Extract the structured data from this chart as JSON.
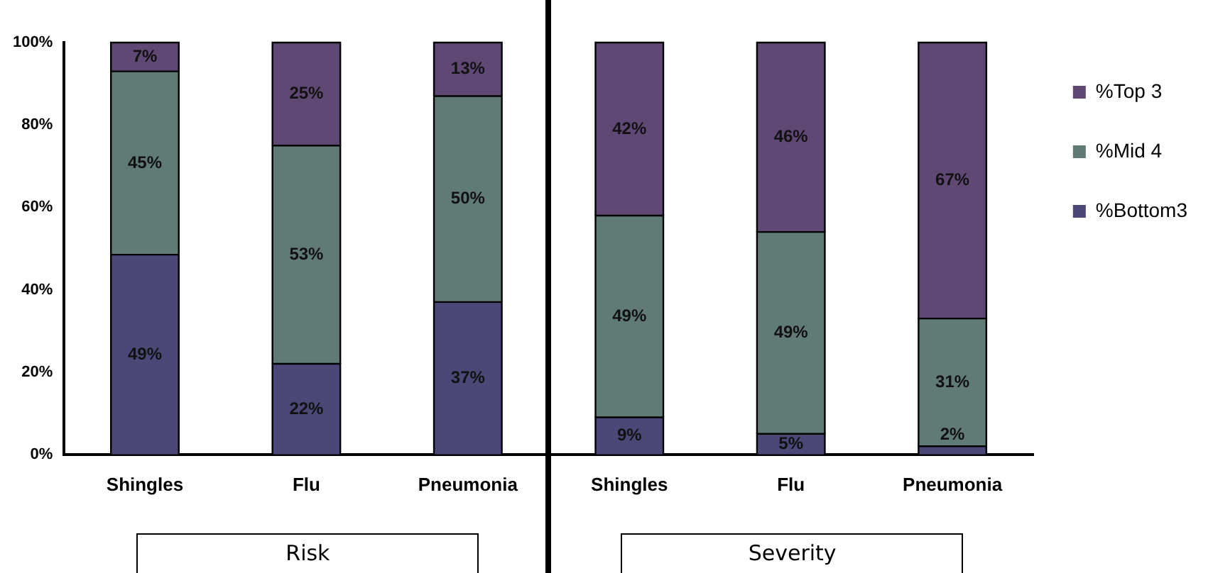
{
  "chart_data": {
    "type": "bar",
    "stacked": true,
    "categories": [
      "Shingles",
      "Flu",
      "Pneumonia",
      "Shingles",
      "Flu",
      "Pneumonia"
    ],
    "series": [
      {
        "name": "%Bottom3",
        "color": "#4b4878",
        "values": [
          48.5,
          22,
          37,
          9,
          5,
          2
        ],
        "value_labels": [
          "49%",
          "22%",
          "37%",
          "9%",
          "5%",
          "2%"
        ]
      },
      {
        "name": "%Mid 4",
        "color": "#607a76",
        "values": [
          44.5,
          53,
          50,
          49,
          49,
          31
        ],
        "value_labels": [
          "45%",
          "53%",
          "50%",
          "49%",
          "49%",
          "31%"
        ]
      },
      {
        "name": "%Top 3",
        "color": "#604875",
        "values": [
          7,
          25,
          13,
          42,
          46,
          67
        ],
        "value_labels": [
          "7%",
          "25%",
          "13%",
          "42%",
          "46%",
          "67%"
        ]
      }
    ],
    "ylim": [
      0,
      100
    ],
    "yticks": [
      {
        "value": 0,
        "label": "0%"
      },
      {
        "value": 20,
        "label": "20%"
      },
      {
        "value": 40,
        "label": "40%"
      },
      {
        "value": 60,
        "label": "60%"
      },
      {
        "value": 80,
        "label": "80%"
      },
      {
        "value": 100,
        "label": "100%"
      }
    ],
    "grid": false,
    "legend": "top right",
    "annotations": [
      "Risk",
      "Severity"
    ]
  }
}
